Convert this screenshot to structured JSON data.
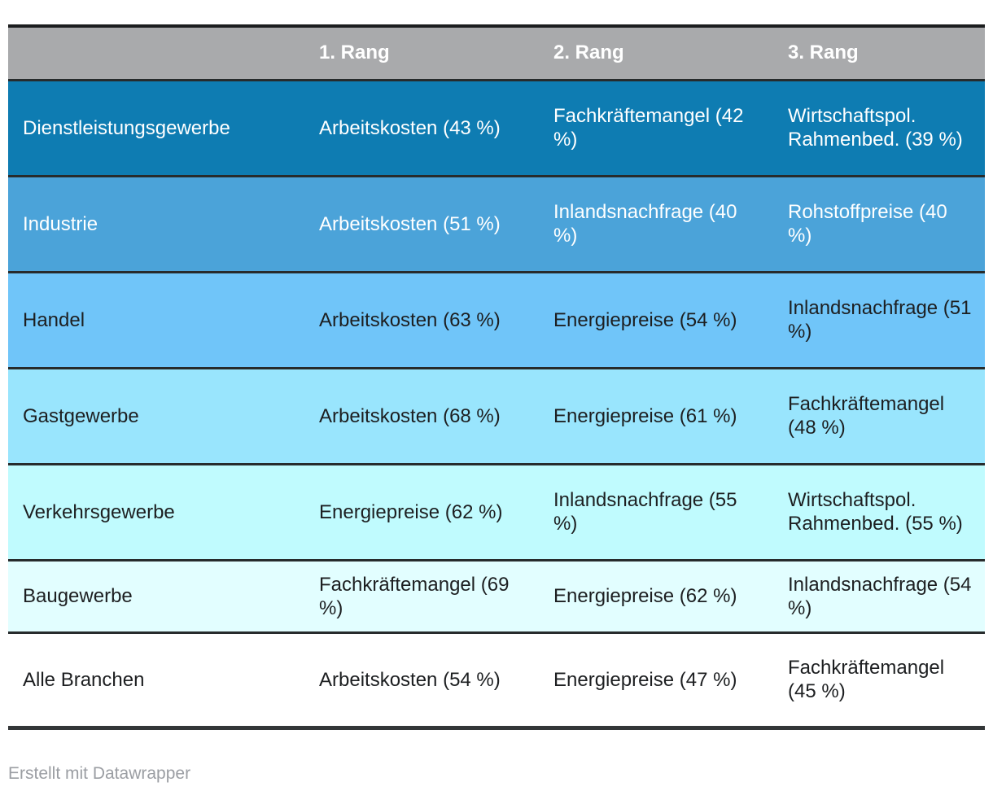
{
  "table": {
    "column_headers": [
      "",
      "1. Rang",
      "2. Rang",
      "3. Rang"
    ],
    "rows": [
      {
        "label": "Dienstleistungsgewerbe",
        "cells": [
          "Arbeitskosten (43 %)",
          "Fachkräftemangel (42 %)",
          "Wirtschaftspol. Rahmenbed. (39 %)"
        ],
        "bg": "#0e7cb2",
        "text_color": "#ffffff"
      },
      {
        "label": "Industrie",
        "cells": [
          "Arbeitskosten (51 %)",
          "Inlandsnachfrage (40 %)",
          "Rohstoffpreise (40 %)"
        ],
        "bg": "#4ba3d9",
        "text_color": "#ffffff"
      },
      {
        "label": "Handel",
        "cells": [
          "Arbeitskosten (63 %)",
          "Energiepreise (54 %)",
          "Inlandsnachfrage (51 %)"
        ],
        "bg": "#70c5f9",
        "text_color": "#1d1f21"
      },
      {
        "label": "Gastgewerbe",
        "cells": [
          "Arbeitskosten (68 %)",
          "Energiepreise (61 %)",
          "Fachkräftemangel (48 %)"
        ],
        "bg": "#99e5fd",
        "text_color": "#1d1f21"
      },
      {
        "label": "Verkehrsgewerbe",
        "cells": [
          "Energiepreise (62 %)",
          "Inlandsnachfrage (55 %)",
          "Wirtschaftspol. Rahmenbed. (55 %)"
        ],
        "bg": "#c0fbfe",
        "text_color": "#1d1f21"
      },
      {
        "label": "Baugewerbe",
        "cells": [
          "Fachkräftemangel (69 %)",
          "Energiepreise (62 %)",
          "Inlandsnachfrage (54 %)"
        ],
        "bg": "#e2feff",
        "text_color": "#1d1f21"
      },
      {
        "label": "Alle Branchen",
        "cells": [
          "Arbeitskosten (54 %)",
          "Energiepreise (47 %)",
          "Fachkräftemangel (45 %)"
        ],
        "bg": "#ffffff",
        "text_color": "#1d1f21"
      }
    ]
  },
  "footer": {
    "credit": "Erstellt mit Datawrapper"
  },
  "colors": {
    "header_bg": "#a9aaac",
    "header_text": "#ffffff",
    "row_divider": "#272b2c",
    "table_top_border": "#1b1d1e",
    "table_bottom_border": "#333638",
    "credit_text": "#9b9ea3"
  },
  "chart_data": {
    "type": "table",
    "columns": [
      "",
      "1. Rang",
      "2. Rang",
      "3. Rang"
    ],
    "rows": [
      [
        "Dienstleistungsgewerbe",
        "Arbeitskosten (43 %)",
        "Fachkräftemangel (42 %)",
        "Wirtschaftspol. Rahmenbed. (39 %)"
      ],
      [
        "Industrie",
        "Arbeitskosten (51 %)",
        "Inlandsnachfrage (40 %)",
        "Rohstoffpreise (40 %)"
      ],
      [
        "Handel",
        "Arbeitskosten (63 %)",
        "Energiepreise (54 %)",
        "Inlandsnachfrage (51 %)"
      ],
      [
        "Gastgewerbe",
        "Arbeitskosten (68 %)",
        "Energiepreise (61 %)",
        "Fachkräftemangel (48 %)"
      ],
      [
        "Verkehrsgewerbe",
        "Energiepreise (62 %)",
        "Inlandsnachfrage (55 %)",
        "Wirtschaftspol. Rahmenbed. (55 %)"
      ],
      [
        "Baugewerbe",
        "Fachkräftemangel (69 %)",
        "Energiepreise (62 %)",
        "Inlandsnachfrage (54 %)"
      ],
      [
        "Alle Branchen",
        "Arbeitskosten (54 %)",
        "Energiepreise (47 %)",
        "Fachkräftemangel (45 %)"
      ]
    ],
    "values_parsed": [
      {
        "sector": "Dienstleistungsgewerbe",
        "ranks": [
          {
            "factor": "Arbeitskosten",
            "percent": 43
          },
          {
            "factor": "Fachkräftemangel",
            "percent": 42
          },
          {
            "factor": "Wirtschaftspol. Rahmenbed.",
            "percent": 39
          }
        ]
      },
      {
        "sector": "Industrie",
        "ranks": [
          {
            "factor": "Arbeitskosten",
            "percent": 51
          },
          {
            "factor": "Inlandsnachfrage",
            "percent": 40
          },
          {
            "factor": "Rohstoffpreise",
            "percent": 40
          }
        ]
      },
      {
        "sector": "Handel",
        "ranks": [
          {
            "factor": "Arbeitskosten",
            "percent": 63
          },
          {
            "factor": "Energiepreise",
            "percent": 54
          },
          {
            "factor": "Inlandsnachfrage",
            "percent": 51
          }
        ]
      },
      {
        "sector": "Gastgewerbe",
        "ranks": [
          {
            "factor": "Arbeitskosten",
            "percent": 68
          },
          {
            "factor": "Energiepreise",
            "percent": 61
          },
          {
            "factor": "Fachkräftemangel",
            "percent": 48
          }
        ]
      },
      {
        "sector": "Verkehrsgewerbe",
        "ranks": [
          {
            "factor": "Energiepreise",
            "percent": 62
          },
          {
            "factor": "Inlandsnachfrage",
            "percent": 55
          },
          {
            "factor": "Wirtschaftspol. Rahmenbed.",
            "percent": 55
          }
        ]
      },
      {
        "sector": "Baugewerbe",
        "ranks": [
          {
            "factor": "Fachkräftemangel",
            "percent": 69
          },
          {
            "factor": "Energiepreise",
            "percent": 62
          },
          {
            "factor": "Inlandsnachfrage",
            "percent": 54
          }
        ]
      },
      {
        "sector": "Alle Branchen",
        "ranks": [
          {
            "factor": "Arbeitskosten",
            "percent": 54
          },
          {
            "factor": "Energiepreise",
            "percent": 47
          },
          {
            "factor": "Fachkräftemangel",
            "percent": 45
          }
        ]
      }
    ]
  }
}
